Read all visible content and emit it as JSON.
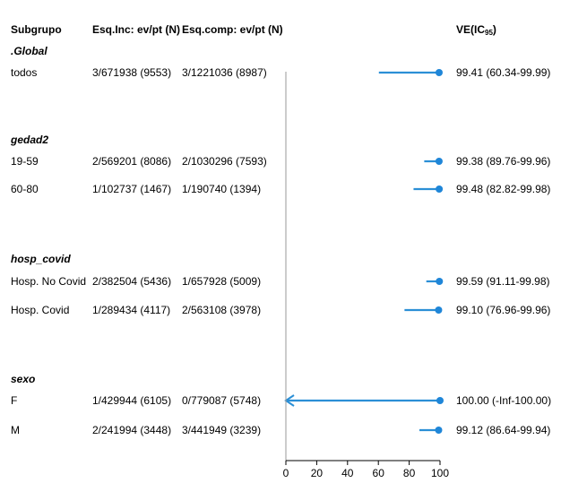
{
  "chart_data": {
    "type": "forest",
    "headers": {
      "subgroup": "Subgrupo",
      "esq_inc": "Esq.Inc: ev/pt (N)",
      "esq_comp": "Esq.comp: ev/pt (N)",
      "ve": "VE(IC",
      "ve_sub": "95",
      "ve_close": ")"
    },
    "x_ticks": [
      "0",
      "20",
      "40",
      "60",
      "80",
      "100"
    ],
    "xlim": [
      0,
      100
    ],
    "groups": [
      {
        "name": ".Global",
        "rows": [
          {
            "label": "todos",
            "esq_inc": "3/671938 (9553)",
            "esq_comp": "3/1221036 (8987)",
            "ve": 99.41,
            "lo": 60.34,
            "hi": 99.99,
            "ve_text": "99.41 (60.34-99.99)"
          }
        ]
      },
      {
        "name": "gedad2",
        "rows": [
          {
            "label": "19-59",
            "esq_inc": "2/569201 (8086)",
            "esq_comp": "2/1030296 (7593)",
            "ve": 99.38,
            "lo": 89.76,
            "hi": 99.96,
            "ve_text": "99.38 (89.76-99.96)"
          },
          {
            "label": "60-80",
            "esq_inc": "1/102737 (1467)",
            "esq_comp": "1/190740 (1394)",
            "ve": 99.48,
            "lo": 82.82,
            "hi": 99.98,
            "ve_text": "99.48 (82.82-99.98)"
          }
        ]
      },
      {
        "name": "hosp_covid",
        "rows": [
          {
            "label": "Hosp. No Covid",
            "esq_inc": "2/382504 (5436)",
            "esq_comp": "1/657928 (5009)",
            "ve": 99.59,
            "lo": 91.11,
            "hi": 99.98,
            "ve_text": "99.59 (91.11-99.98)"
          },
          {
            "label": "Hosp. Covid",
            "esq_inc": "1/289434 (4117)",
            "esq_comp": "2/563108 (3978)",
            "ve": 99.1,
            "lo": 76.96,
            "hi": 99.96,
            "ve_text": "99.10 (76.96-99.96)"
          }
        ]
      },
      {
        "name": "sexo",
        "rows": [
          {
            "label": "F",
            "esq_inc": "1/429944 (6105)",
            "esq_comp": "0/779087 (5748)",
            "ve": 100.0,
            "lo": "-Inf",
            "hi": 100.0,
            "ve_text": "100.00 (-Inf-100.00)"
          },
          {
            "label": "M",
            "esq_inc": "2/241994 (3448)",
            "esq_comp": "3/441949 (3239)",
            "ve": 99.12,
            "lo": 86.64,
            "hi": 99.94,
            "ve_text": "99.12 (86.64-99.94)"
          }
        ]
      }
    ],
    "colors": {
      "ci": "#2b8fd6",
      "point": "#1f86d8",
      "axis": "#9a9a9a",
      "text": "#000000"
    }
  }
}
